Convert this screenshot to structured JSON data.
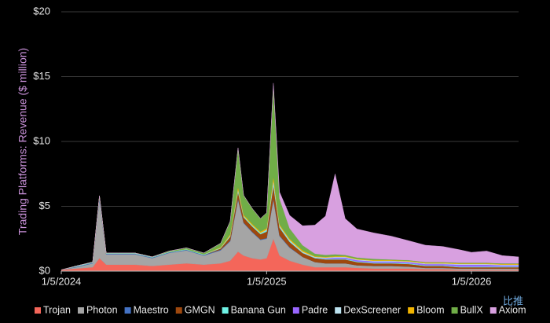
{
  "chart_data": {
    "type": "stacked-area",
    "y_label": "Trading Platforms: Revenue ($ million)",
    "x": [
      "1/5/2024",
      "2/1/2024",
      "3/1/2024",
      "3/13/2024",
      "3/25/2024",
      "4/15/2024",
      "5/15/2024",
      "6/15/2024",
      "7/15/2024",
      "8/15/2024",
      "9/15/2024",
      "10/15/2024",
      "11/1/2024",
      "11/15/2024",
      "11/25/2024",
      "12/10/2024",
      "12/25/2024",
      "1/5/2025",
      "1/17/2025",
      "1/28/2025",
      "2/15/2025",
      "3/10/2025",
      "4/1/2025",
      "4/20/2025",
      "5/7/2025",
      "5/25/2025",
      "6/15/2025",
      "7/15/2025",
      "8/15/2025",
      "9/15/2025",
      "10/15/2025",
      "11/15/2025",
      "12/15/2025",
      "1/5/2026",
      "2/1/2026",
      "3/1/2026",
      "3/30/2026"
    ],
    "xlim": [
      "1/5/2024",
      "3/30/2026"
    ],
    "xticks": [
      "1/5/2024",
      "1/5/2025",
      "1/5/2026"
    ],
    "ylim": [
      0,
      20
    ],
    "yticks": [
      {
        "value": 0,
        "label": "$0"
      },
      {
        "value": 5,
        "label": "$5"
      },
      {
        "value": 10,
        "label": "$10"
      },
      {
        "value": 15,
        "label": "$15"
      },
      {
        "value": 20,
        "label": "$20"
      }
    ],
    "grid": true,
    "legend": "bottom",
    "series": [
      {
        "name": "Trojan",
        "color": "#f4665a",
        "values": [
          0.1,
          0.2,
          0.3,
          1.0,
          0.5,
          0.5,
          0.5,
          0.4,
          0.5,
          0.6,
          0.5,
          0.6,
          0.8,
          1.5,
          1.2,
          1.0,
          0.9,
          1.0,
          2.5,
          1.2,
          0.8,
          0.5,
          0.3,
          0.3,
          0.3,
          0.3,
          0.25,
          0.2,
          0.2,
          0.2,
          0.15,
          0.15,
          0.1,
          0.1,
          0.1,
          0.1,
          0.1
        ]
      },
      {
        "name": "Photon",
        "color": "#a5a5a5",
        "values": [
          0,
          0.1,
          0.3,
          4.5,
          0.8,
          0.8,
          0.8,
          0.6,
          0.9,
          1.0,
          0.7,
          1.0,
          1.5,
          4.0,
          2.5,
          2.0,
          1.5,
          1.5,
          3.0,
          1.5,
          1.0,
          0.6,
          0.4,
          0.3,
          0.3,
          0.3,
          0.2,
          0.2,
          0.2,
          0.15,
          0.1,
          0.1,
          0.1,
          0.1,
          0.1,
          0.1,
          0.1
        ]
      },
      {
        "name": "Maestro",
        "color": "#4472c4",
        "values": [
          0,
          0.05,
          0.05,
          0.2,
          0.05,
          0.05,
          0.05,
          0.05,
          0.05,
          0.05,
          0.05,
          0.05,
          0.05,
          0.1,
          0.05,
          0.05,
          0.05,
          0.05,
          0.1,
          0.05,
          0.05,
          0,
          0,
          0,
          0,
          0,
          0,
          0,
          0,
          0,
          0,
          0,
          0,
          0,
          0,
          0,
          0
        ]
      },
      {
        "name": "GMGN",
        "color": "#9e480e",
        "values": [
          0,
          0,
          0,
          0,
          0,
          0,
          0,
          0,
          0,
          0,
          0,
          0.1,
          0.3,
          0.5,
          0.4,
          0.4,
          0.4,
          0.5,
          1.0,
          0.6,
          0.4,
          0.3,
          0.3,
          0.3,
          0.3,
          0.3,
          0.25,
          0.2,
          0.2,
          0.2,
          0.15,
          0.15,
          0.1,
          0.1,
          0.1,
          0.1,
          0.1
        ]
      },
      {
        "name": "Banana Gun",
        "color": "#6ff2e5",
        "values": [
          0,
          0.05,
          0.05,
          0.1,
          0.05,
          0.05,
          0.05,
          0.05,
          0.05,
          0.05,
          0.05,
          0.05,
          0.1,
          0.2,
          0.1,
          0.1,
          0.1,
          0.1,
          0.3,
          0.1,
          0.1,
          0.05,
          0.05,
          0.05,
          0.05,
          0.05,
          0.05,
          0.05,
          0.05,
          0.05,
          0.05,
          0.05,
          0.05,
          0.05,
          0.05,
          0.05,
          0.05
        ]
      },
      {
        "name": "Padre",
        "color": "#9966ff",
        "values": [
          0,
          0,
          0,
          0,
          0,
          0,
          0,
          0,
          0,
          0,
          0,
          0,
          0,
          0,
          0,
          0,
          0,
          0,
          0,
          0,
          0,
          0,
          0,
          0.05,
          0.1,
          0.1,
          0.1,
          0.1,
          0.1,
          0.1,
          0.1,
          0.1,
          0.15,
          0.15,
          0.15,
          0.1,
          0.1
        ]
      },
      {
        "name": "DexScreener",
        "color": "#bde3f0",
        "values": [
          0,
          0,
          0,
          0,
          0,
          0,
          0,
          0,
          0,
          0,
          0,
          0,
          0,
          0,
          0,
          0,
          0,
          0.05,
          0.1,
          0.05,
          0.05,
          0.05,
          0.05,
          0.05,
          0.05,
          0.05,
          0.05,
          0.05,
          0.05,
          0.05,
          0.05,
          0.05,
          0.05,
          0.05,
          0.05,
          0.05,
          0.05
        ]
      },
      {
        "name": "Bloom",
        "color": "#f2b400",
        "values": [
          0,
          0,
          0,
          0,
          0,
          0,
          0,
          0,
          0,
          0,
          0,
          0.05,
          0.1,
          0.2,
          0.1,
          0.1,
          0.1,
          0.1,
          0.3,
          0.1,
          0.1,
          0.1,
          0.05,
          0.05,
          0.05,
          0.05,
          0.05,
          0.05,
          0.05,
          0.05,
          0.05,
          0.05,
          0.05,
          0.05,
          0.05,
          0.05,
          0.05
        ]
      },
      {
        "name": "BullX",
        "color": "#70ad47",
        "values": [
          0,
          0,
          0,
          0,
          0,
          0,
          0,
          0,
          0.05,
          0.1,
          0.1,
          0.3,
          1.0,
          3.0,
          1.5,
          1.2,
          1.0,
          1.2,
          7.0,
          2.0,
          0.8,
          0.4,
          0.2,
          0.15,
          0.15,
          0.1,
          0.1,
          0.1,
          0.05,
          0.05,
          0.05,
          0.05,
          0.05,
          0.05,
          0.05,
          0.05,
          0.05
        ]
      },
      {
        "name": "Axiom",
        "color": "#d8a0e0",
        "values": [
          0,
          0,
          0,
          0,
          0,
          0,
          0,
          0,
          0,
          0,
          0,
          0,
          0,
          0,
          0,
          0,
          0,
          0,
          0.2,
          0.5,
          1.0,
          1.5,
          2.2,
          3.0,
          6.2,
          2.8,
          2.2,
          2.0,
          1.8,
          1.5,
          1.3,
          1.2,
          1.0,
          0.8,
          0.9,
          0.6,
          0.5
        ]
      }
    ]
  },
  "watermark": "比推"
}
